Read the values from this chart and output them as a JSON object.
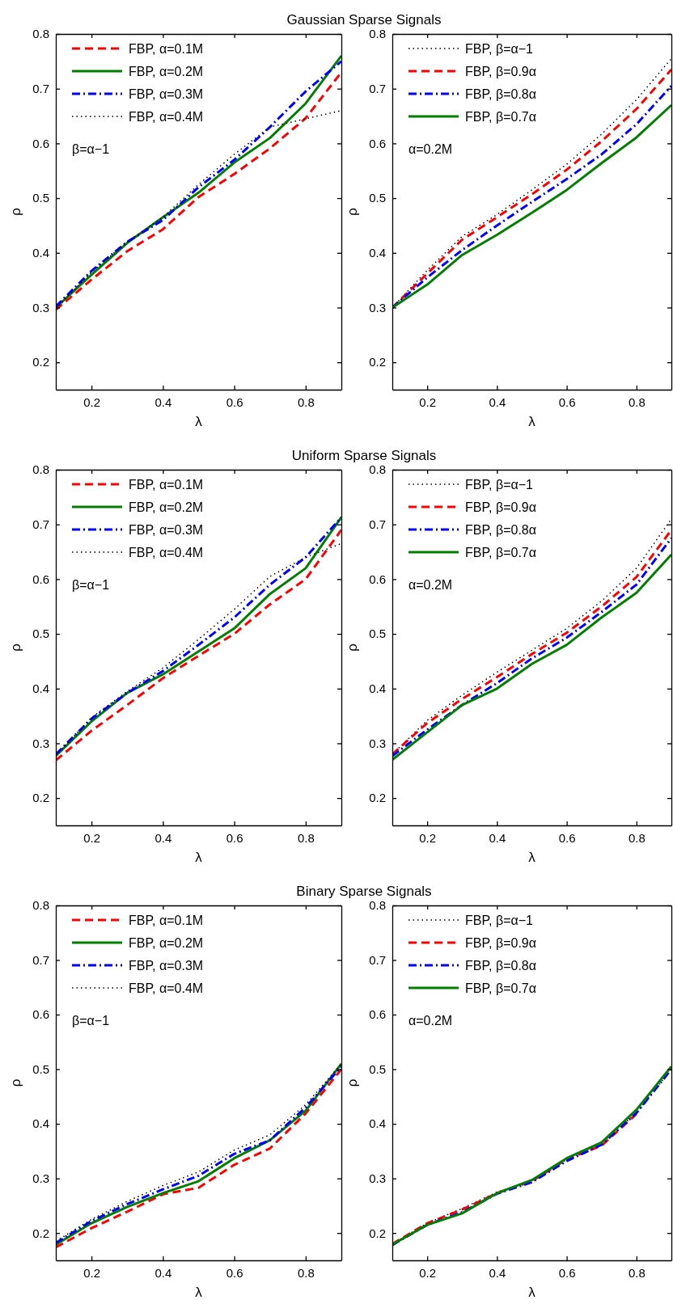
{
  "chart_data": [
    {
      "type": "line",
      "title": "Gaussian Sparse Signals",
      "xlabel": "λ",
      "ylabel": "ρ",
      "xlim": [
        0.1,
        0.9
      ],
      "ylim": [
        0.15,
        0.8
      ],
      "xticks": [
        0.2,
        0.4,
        0.6,
        0.8
      ],
      "yticks": [
        0.2,
        0.3,
        0.4,
        0.5,
        0.6,
        0.7,
        0.8
      ],
      "legend": "top left",
      "grid": false,
      "annotations": [
        "β=α−1"
      ],
      "x": [
        0.1,
        0.2,
        0.3,
        0.4,
        0.5,
        0.6,
        0.7,
        0.8,
        0.9
      ],
      "series": [
        {
          "name": "FBP, α=0.1M",
          "color": "#ff0000",
          "line_style": "dashed",
          "values": [
            0.296,
            0.351,
            0.403,
            0.443,
            0.502,
            0.544,
            0.591,
            0.646,
            0.73
          ]
        },
        {
          "name": "FBP, α=0.2M",
          "color": "#007f00",
          "line_style": "solid",
          "values": [
            0.3,
            0.36,
            0.418,
            0.465,
            0.51,
            0.565,
            0.61,
            0.673,
            0.76
          ]
        },
        {
          "name": "FBP, α=0.3M",
          "color": "#0000ff",
          "line_style": "dashdot",
          "values": [
            0.302,
            0.367,
            0.42,
            0.46,
            0.52,
            0.57,
            0.63,
            0.695,
            0.75
          ]
        },
        {
          "name": "FBP, α=0.4M",
          "color": "#000000",
          "line_style": "dotted",
          "values": [
            0.298,
            0.365,
            0.42,
            0.465,
            0.525,
            0.58,
            0.63,
            0.645,
            0.66
          ]
        }
      ]
    },
    {
      "type": "line",
      "xlabel": "λ",
      "ylabel": "ρ",
      "xlim": [
        0.1,
        0.9
      ],
      "ylim": [
        0.15,
        0.8
      ],
      "xticks": [
        0.2,
        0.4,
        0.6,
        0.8
      ],
      "yticks": [
        0.2,
        0.3,
        0.4,
        0.5,
        0.6,
        0.7,
        0.8
      ],
      "legend": "top left",
      "grid": false,
      "annotations": [
        "α=0.2M"
      ],
      "x": [
        0.1,
        0.2,
        0.3,
        0.4,
        0.5,
        0.6,
        0.7,
        0.8,
        0.9
      ],
      "series": [
        {
          "name": "FBP, β=α−1",
          "color": "#000000",
          "line_style": "dotted",
          "values": [
            0.3,
            0.368,
            0.43,
            0.47,
            0.515,
            0.562,
            0.617,
            0.68,
            0.755
          ]
        },
        {
          "name": "FBP, β=0.9α",
          "color": "#ff0000",
          "line_style": "dashed",
          "values": [
            0.3,
            0.362,
            0.424,
            0.465,
            0.507,
            0.552,
            0.604,
            0.663,
            0.735
          ]
        },
        {
          "name": "FBP, β=0.8α",
          "color": "#0000ff",
          "line_style": "dashdot",
          "values": [
            0.3,
            0.355,
            0.405,
            0.45,
            0.493,
            0.535,
            0.58,
            0.635,
            0.705
          ]
        },
        {
          "name": "FBP, β=0.7α",
          "color": "#007f00",
          "line_style": "solid",
          "values": [
            0.3,
            0.342,
            0.396,
            0.433,
            0.473,
            0.515,
            0.564,
            0.611,
            0.67
          ]
        }
      ]
    },
    {
      "type": "line",
      "title": "Uniform Sparse Signals",
      "xlabel": "λ",
      "ylabel": "ρ",
      "xlim": [
        0.1,
        0.9
      ],
      "ylim": [
        0.15,
        0.8
      ],
      "xticks": [
        0.2,
        0.4,
        0.6,
        0.8
      ],
      "yticks": [
        0.2,
        0.3,
        0.4,
        0.5,
        0.6,
        0.7,
        0.8
      ],
      "legend": "top left",
      "grid": false,
      "annotations": [
        "β=α−1"
      ],
      "x": [
        0.1,
        0.2,
        0.3,
        0.4,
        0.5,
        0.6,
        0.7,
        0.8,
        0.9
      ],
      "series": [
        {
          "name": "FBP, α=0.1M",
          "color": "#ff0000",
          "line_style": "dashed",
          "values": [
            0.269,
            0.323,
            0.37,
            0.419,
            0.46,
            0.5,
            0.554,
            0.6,
            0.69
          ]
        },
        {
          "name": "FBP, α=0.2M",
          "color": "#007f00",
          "line_style": "solid",
          "values": [
            0.277,
            0.34,
            0.392,
            0.426,
            0.468,
            0.51,
            0.573,
            0.62,
            0.713
          ]
        },
        {
          "name": "FBP, α=0.3M",
          "color": "#0000ff",
          "line_style": "dashdot",
          "values": [
            0.28,
            0.345,
            0.392,
            0.432,
            0.48,
            0.53,
            0.59,
            0.64,
            0.713
          ]
        },
        {
          "name": "FBP, α=0.4M",
          "color": "#000000",
          "line_style": "dotted",
          "values": [
            0.278,
            0.347,
            0.395,
            0.438,
            0.49,
            0.545,
            0.605,
            0.64,
            0.665
          ]
        }
      ]
    },
    {
      "type": "line",
      "xlabel": "λ",
      "ylabel": "ρ",
      "xlim": [
        0.1,
        0.9
      ],
      "ylim": [
        0.15,
        0.8
      ],
      "xticks": [
        0.2,
        0.4,
        0.6,
        0.8
      ],
      "yticks": [
        0.2,
        0.3,
        0.4,
        0.5,
        0.6,
        0.7,
        0.8
      ],
      "legend": "top left",
      "grid": false,
      "annotations": [
        "α=0.2M"
      ],
      "x": [
        0.1,
        0.2,
        0.3,
        0.4,
        0.5,
        0.6,
        0.7,
        0.8,
        0.9
      ],
      "series": [
        {
          "name": "FBP, β=α−1",
          "color": "#000000",
          "line_style": "dotted",
          "values": [
            0.28,
            0.342,
            0.388,
            0.43,
            0.47,
            0.51,
            0.56,
            0.62,
            0.71
          ]
        },
        {
          "name": "FBP, β=0.9α",
          "color": "#ff0000",
          "line_style": "dashed",
          "values": [
            0.28,
            0.337,
            0.381,
            0.421,
            0.463,
            0.502,
            0.55,
            0.604,
            0.69
          ]
        },
        {
          "name": "FBP, β=0.8α",
          "color": "#0000ff",
          "line_style": "dashdot",
          "values": [
            0.277,
            0.325,
            0.37,
            0.41,
            0.455,
            0.493,
            0.54,
            0.59,
            0.675
          ]
        },
        {
          "name": "FBP, β=0.7α",
          "color": "#007f00",
          "line_style": "solid",
          "values": [
            0.27,
            0.32,
            0.37,
            0.4,
            0.445,
            0.48,
            0.53,
            0.575,
            0.645
          ]
        }
      ]
    },
    {
      "type": "line",
      "title": "Binary Sparse Signals",
      "xlabel": "λ",
      "ylabel": "ρ",
      "xlim": [
        0.1,
        0.9
      ],
      "ylim": [
        0.15,
        0.8
      ],
      "xticks": [
        0.2,
        0.4,
        0.6,
        0.8
      ],
      "yticks": [
        0.2,
        0.3,
        0.4,
        0.5,
        0.6,
        0.7,
        0.8
      ],
      "legend": "top left",
      "grid": false,
      "annotations": [
        "β=α−1"
      ],
      "x": [
        0.1,
        0.2,
        0.3,
        0.4,
        0.5,
        0.6,
        0.7,
        0.8,
        0.9
      ],
      "series": [
        {
          "name": "FBP, α=0.1M",
          "color": "#ff0000",
          "line_style": "dashed",
          "values": [
            0.174,
            0.209,
            0.239,
            0.271,
            0.283,
            0.325,
            0.355,
            0.419,
            0.5
          ]
        },
        {
          "name": "FBP, α=0.2M",
          "color": "#007f00",
          "line_style": "solid",
          "values": [
            0.179,
            0.218,
            0.248,
            0.273,
            0.295,
            0.337,
            0.37,
            0.424,
            0.51
          ]
        },
        {
          "name": "FBP, α=0.3M",
          "color": "#0000ff",
          "line_style": "dashdot",
          "values": [
            0.182,
            0.222,
            0.253,
            0.28,
            0.305,
            0.345,
            0.37,
            0.43,
            0.505
          ]
        },
        {
          "name": "FBP, α=0.4M",
          "color": "#000000",
          "line_style": "dotted",
          "values": [
            0.185,
            0.225,
            0.258,
            0.287,
            0.312,
            0.352,
            0.38,
            0.435,
            0.51
          ]
        }
      ]
    },
    {
      "type": "line",
      "xlabel": "λ",
      "ylabel": "ρ",
      "xlim": [
        0.1,
        0.9
      ],
      "ylim": [
        0.15,
        0.8
      ],
      "xticks": [
        0.2,
        0.4,
        0.6,
        0.8
      ],
      "yticks": [
        0.2,
        0.3,
        0.4,
        0.5,
        0.6,
        0.7,
        0.8
      ],
      "legend": "top left",
      "grid": false,
      "annotations": [
        "α=0.2M"
      ],
      "x": [
        0.1,
        0.2,
        0.3,
        0.4,
        0.5,
        0.6,
        0.7,
        0.8,
        0.9
      ],
      "series": [
        {
          "name": "FBP, β=α−1",
          "color": "#000000",
          "line_style": "dotted",
          "values": [
            0.18,
            0.218,
            0.245,
            0.275,
            0.295,
            0.335,
            0.365,
            0.42,
            0.5
          ]
        },
        {
          "name": "FBP, β=0.9α",
          "color": "#ff0000",
          "line_style": "dashed",
          "values": [
            0.18,
            0.218,
            0.243,
            0.273,
            0.295,
            0.335,
            0.36,
            0.418,
            null
          ]
        },
        {
          "name": "FBP, β=0.8α",
          "color": "#0000ff",
          "line_style": "dashdot",
          "values": [
            0.178,
            0.215,
            0.238,
            0.272,
            0.293,
            0.332,
            0.362,
            0.42,
            0.5
          ]
        },
        {
          "name": "FBP, β=0.7α",
          "color": "#007f00",
          "line_style": "solid",
          "values": [
            0.179,
            0.215,
            0.236,
            0.273,
            0.297,
            0.337,
            0.366,
            0.426,
            0.505
          ]
        }
      ]
    }
  ]
}
